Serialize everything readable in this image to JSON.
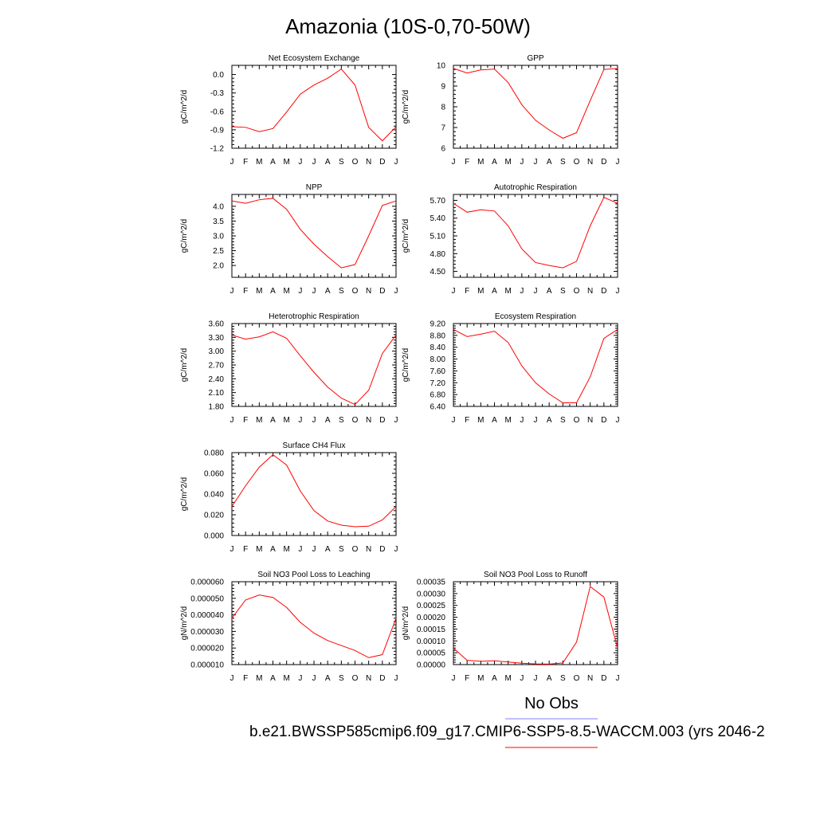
{
  "page": {
    "title": "Amazonia (10S-0,70-50W)",
    "legend_label": "No Obs",
    "case_label": "b.e21.BWSSP585cmip6.f09_g17.CMIP6-SSP5-8.5-WACCM.003 (yrs 2046-2",
    "colors": {
      "line": "#ff0000",
      "obs_line": "#8080ff",
      "axis": "#000000",
      "background": "#ffffff"
    }
  },
  "chart_data": [
    {
      "type": "line",
      "title": "Net Ecosystem Exchange",
      "ylabel": "gC/m^2/d",
      "xlabel": "",
      "categories": [
        "J",
        "F",
        "M",
        "A",
        "M",
        "J",
        "J",
        "A",
        "S",
        "O",
        "N",
        "D",
        "J"
      ],
      "ylim": [
        -1.2,
        0.15
      ],
      "yticks": [
        -1.2,
        -0.9,
        -0.6,
        -0.3,
        0.0
      ],
      "yticklabels": [
        "-1.2",
        "-0.9",
        "-0.6",
        "-0.3",
        "0.0"
      ],
      "values": [
        -0.85,
        -0.86,
        -0.93,
        -0.88,
        -0.61,
        -0.32,
        -0.17,
        -0.06,
        0.09,
        -0.17,
        -0.86,
        -1.08,
        -0.85
      ]
    },
    {
      "type": "line",
      "title": "GPP",
      "ylabel": "gC/m^2/d",
      "xlabel": "",
      "categories": [
        "J",
        "F",
        "M",
        "A",
        "M",
        "J",
        "J",
        "A",
        "S",
        "O",
        "N",
        "D",
        "J"
      ],
      "ylim": [
        6,
        10
      ],
      "yticks": [
        6,
        7,
        8,
        9,
        10
      ],
      "yticklabels": [
        "6",
        "7",
        "8",
        "9",
        "10"
      ],
      "values": [
        9.85,
        9.63,
        9.78,
        9.82,
        9.17,
        8.1,
        7.35,
        6.88,
        6.48,
        6.75,
        8.3,
        9.8,
        9.85
      ]
    },
    {
      "type": "line",
      "title": "NPP",
      "ylabel": "gC/m^2/d",
      "xlabel": "",
      "categories": [
        "J",
        "F",
        "M",
        "A",
        "M",
        "J",
        "J",
        "A",
        "S",
        "O",
        "N",
        "D",
        "J"
      ],
      "ylim": [
        1.6,
        4.4
      ],
      "yticks": [
        2.0,
        2.5,
        3.0,
        3.5,
        4.0
      ],
      "yticklabels": [
        "2.0",
        "2.5",
        "3.0",
        "3.5",
        "4.0"
      ],
      "values": [
        4.18,
        4.1,
        4.22,
        4.27,
        3.9,
        3.22,
        2.72,
        2.3,
        1.92,
        2.03,
        3.0,
        4.03,
        4.18
      ]
    },
    {
      "type": "line",
      "title": "Autotrophic Respiration",
      "ylabel": "gC/m^2/d",
      "xlabel": "",
      "categories": [
        "J",
        "F",
        "M",
        "A",
        "M",
        "J",
        "J",
        "A",
        "S",
        "O",
        "N",
        "D",
        "J"
      ],
      "ylim": [
        4.4,
        5.8
      ],
      "yticks": [
        4.5,
        4.8,
        5.1,
        5.4,
        5.7
      ],
      "yticklabels": [
        "4.50",
        "4.80",
        "5.10",
        "5.40",
        "5.70"
      ],
      "values": [
        5.65,
        5.5,
        5.54,
        5.52,
        5.27,
        4.88,
        4.65,
        4.6,
        4.56,
        4.67,
        5.27,
        5.75,
        5.65
      ]
    },
    {
      "type": "line",
      "title": "Heterotrophic Respiration",
      "ylabel": "gC/m^2/d",
      "xlabel": "",
      "categories": [
        "J",
        "F",
        "M",
        "A",
        "M",
        "J",
        "J",
        "A",
        "S",
        "O",
        "N",
        "D",
        "J"
      ],
      "ylim": [
        1.8,
        3.6
      ],
      "yticks": [
        1.8,
        2.1,
        2.4,
        2.7,
        3.0,
        3.3,
        3.6
      ],
      "yticklabels": [
        "1.80",
        "2.10",
        "2.40",
        "2.70",
        "3.00",
        "3.30",
        "3.60"
      ],
      "values": [
        3.35,
        3.26,
        3.31,
        3.42,
        3.28,
        2.9,
        2.54,
        2.22,
        1.98,
        1.84,
        2.15,
        2.95,
        3.35
      ]
    },
    {
      "type": "line",
      "title": "Ecosystem Respiration",
      "ylabel": "gC/m^2/d",
      "xlabel": "",
      "categories": [
        "J",
        "F",
        "M",
        "A",
        "M",
        "J",
        "J",
        "A",
        "S",
        "O",
        "N",
        "D",
        "J"
      ],
      "ylim": [
        6.4,
        9.2
      ],
      "yticks": [
        6.4,
        6.8,
        7.2,
        7.6,
        8.0,
        8.4,
        8.8,
        9.2
      ],
      "yticklabels": [
        "6.40",
        "6.80",
        "7.20",
        "7.60",
        "8.00",
        "8.40",
        "8.80",
        "9.20"
      ],
      "values": [
        9.0,
        8.76,
        8.84,
        8.94,
        8.56,
        7.77,
        7.2,
        6.82,
        6.52,
        6.52,
        7.4,
        8.7,
        9.0
      ]
    },
    {
      "type": "line",
      "title": "Surface CH4 Flux",
      "ylabel": "gC/m^2/d",
      "xlabel": "",
      "categories": [
        "J",
        "F",
        "M",
        "A",
        "M",
        "J",
        "J",
        "A",
        "S",
        "O",
        "N",
        "D",
        "J"
      ],
      "ylim": [
        0.0,
        0.08
      ],
      "yticks": [
        0.0,
        0.02,
        0.04,
        0.06,
        0.08
      ],
      "yticklabels": [
        "0.000",
        "0.020",
        "0.040",
        "0.060",
        "0.080"
      ],
      "values": [
        0.028,
        0.048,
        0.066,
        0.078,
        0.068,
        0.043,
        0.024,
        0.014,
        0.01,
        0.0085,
        0.009,
        0.015,
        0.028
      ]
    },
    {
      "type": "line",
      "title": "Soil NO3 Pool Loss to Leaching",
      "ylabel": "gN/m^2/d",
      "xlabel": "",
      "categories": [
        "J",
        "F",
        "M",
        "A",
        "M",
        "J",
        "J",
        "A",
        "S",
        "O",
        "N",
        "D",
        "J"
      ],
      "ylim": [
        1e-05,
        6e-05
      ],
      "yticks": [
        1e-05,
        2e-05,
        3e-05,
        4e-05,
        5e-05,
        6e-05
      ],
      "yticklabels": [
        "0.000010",
        "0.000020",
        "0.000030",
        "0.000040",
        "0.000050",
        "0.000060"
      ],
      "values": [
        3.8e-05,
        4.9e-05,
        5.2e-05,
        5.05e-05,
        4.45e-05,
        3.55e-05,
        2.9e-05,
        2.45e-05,
        2.15e-05,
        1.85e-05,
        1.42e-05,
        1.6e-05,
        3.8e-05
      ]
    },
    {
      "type": "line",
      "title": "Soil NO3 Pool Loss to Runoff",
      "ylabel": "gN/m^2/d",
      "xlabel": "",
      "categories": [
        "J",
        "F",
        "M",
        "A",
        "M",
        "J",
        "J",
        "A",
        "S",
        "O",
        "N",
        "D",
        "J"
      ],
      "ylim": [
        0,
        0.00035
      ],
      "yticks": [
        0,
        5e-05,
        0.0001,
        0.00015,
        0.0002,
        0.00025,
        0.0003,
        0.00035
      ],
      "yticklabels": [
        "0.00000",
        "0.00005",
        "0.00010",
        "0.00015",
        "0.00020",
        "0.00025",
        "0.00030",
        "0.00035"
      ],
      "values": [
        7e-05,
        1.8e-05,
        1.4e-05,
        1.6e-05,
        1.1e-05,
        6e-06,
        3e-06,
        2e-06,
        7e-06,
        9.5e-05,
        0.00033,
        0.000285,
        7e-05
      ]
    }
  ]
}
